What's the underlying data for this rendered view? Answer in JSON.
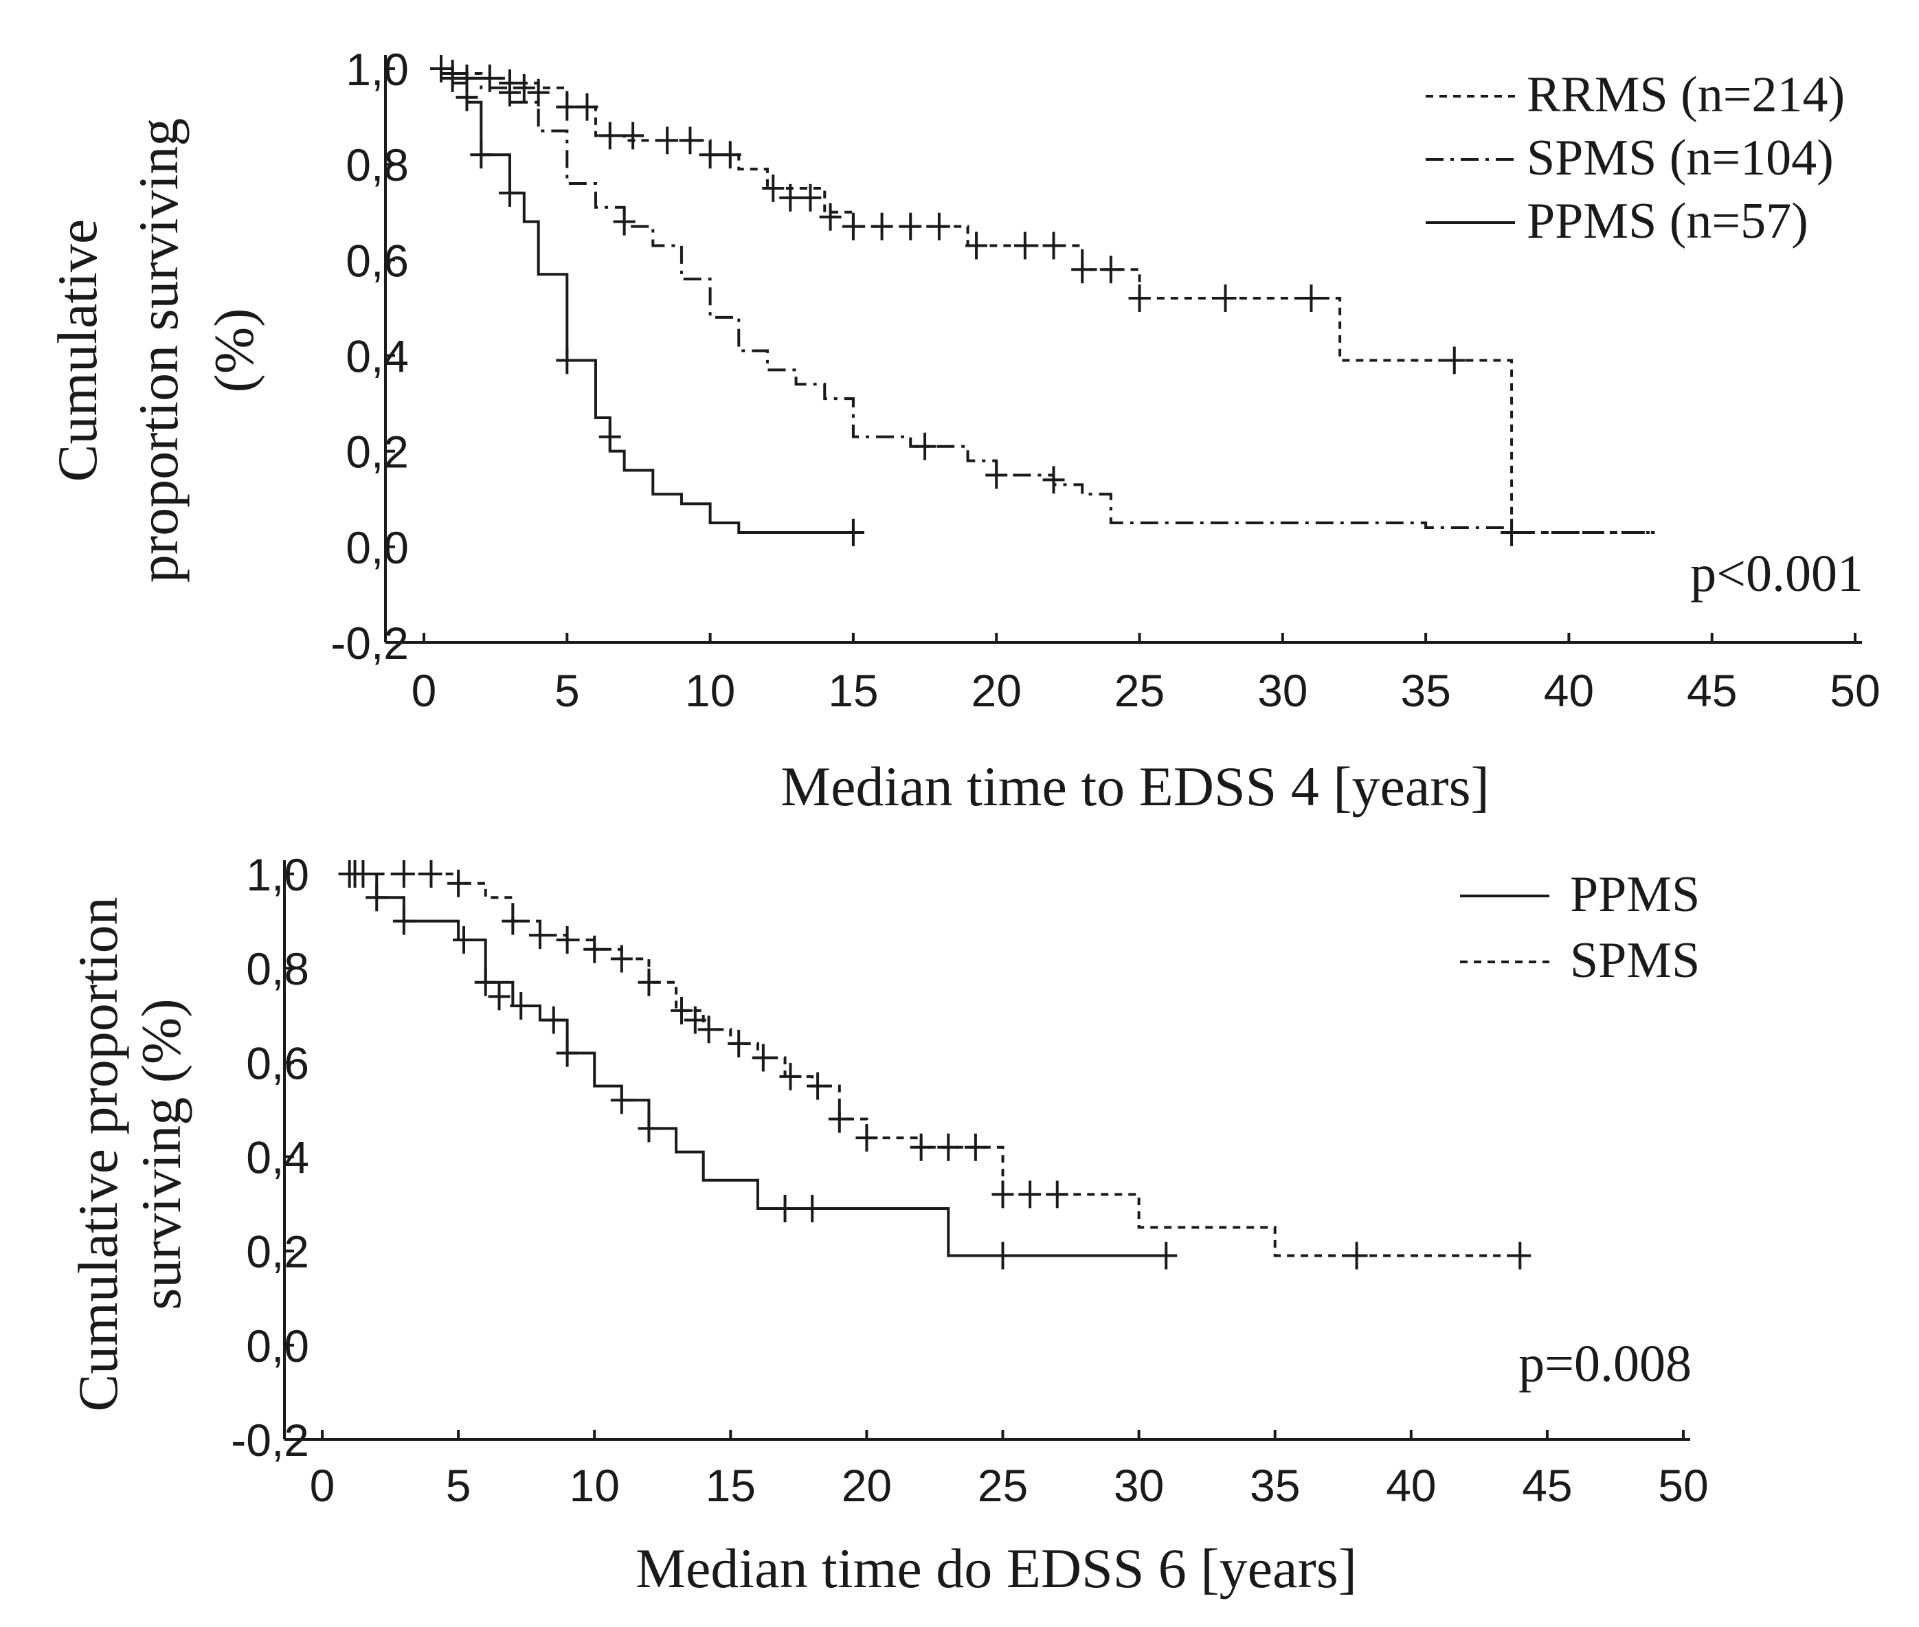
{
  "chart_data": [
    {
      "type": "line",
      "subtype": "kaplan-meier",
      "xlabel": "Median time to EDSS 4 [years]",
      "ylabel_lines": [
        "Cumulative",
        "proportion surviving",
        "(%)"
      ],
      "xlim": [
        0,
        50
      ],
      "ylim": [
        -0.2,
        1.0
      ],
      "xticks": [
        "0",
        "5",
        "10",
        "15",
        "20",
        "25",
        "30",
        "35",
        "40",
        "45",
        "50"
      ],
      "yticks": [
        "1,0",
        "0,8",
        "0,6",
        "0,4",
        "0,2",
        "0,0",
        "-0,2"
      ],
      "annotation": "p<0.001",
      "legend_position": "top-right",
      "series": [
        {
          "name": "RRMS (n=214)",
          "dash": "short-dash",
          "steps": [
            [
              0.5,
              1.0
            ],
            [
              1,
              0.99
            ],
            [
              2,
              0.98
            ],
            [
              3,
              0.97
            ],
            [
              4,
              0.96
            ],
            [
              5,
              0.92
            ],
            [
              6,
              0.86
            ],
            [
              7,
              0.85
            ],
            [
              10,
              0.82
            ],
            [
              11,
              0.79
            ],
            [
              12,
              0.75
            ],
            [
              14,
              0.7
            ],
            [
              15,
              0.67
            ],
            [
              19,
              0.63
            ],
            [
              23,
              0.58
            ],
            [
              25,
              0.52
            ],
            [
              32,
              0.39
            ],
            [
              38,
              0.03
            ],
            [
              43,
              0.03
            ]
          ],
          "censored": [
            [
              0.6,
              1.0
            ],
            [
              1,
              0.99
            ],
            [
              1.5,
              0.98
            ],
            [
              2.3,
              0.98
            ],
            [
              3,
              0.97
            ],
            [
              3.5,
              0.96
            ],
            [
              4,
              0.95
            ],
            [
              5,
              0.92
            ],
            [
              5.7,
              0.92
            ],
            [
              6.5,
              0.86
            ],
            [
              7.3,
              0.86
            ],
            [
              8.5,
              0.85
            ],
            [
              9.3,
              0.85
            ],
            [
              10,
              0.82
            ],
            [
              10.7,
              0.82
            ],
            [
              12.2,
              0.75
            ],
            [
              12.8,
              0.73
            ],
            [
              13.5,
              0.73
            ],
            [
              14.2,
              0.69
            ],
            [
              15,
              0.67
            ],
            [
              16,
              0.67
            ],
            [
              17,
              0.67
            ],
            [
              18,
              0.67
            ],
            [
              19.3,
              0.63
            ],
            [
              21,
              0.63
            ],
            [
              22,
              0.63
            ],
            [
              23,
              0.58
            ],
            [
              24,
              0.58
            ],
            [
              25,
              0.52
            ],
            [
              28,
              0.52
            ],
            [
              31,
              0.52
            ],
            [
              36,
              0.39
            ]
          ]
        },
        {
          "name": "SPMS (n=104)",
          "dash": "dash-dot",
          "steps": [
            [
              0.5,
              1.0
            ],
            [
              1,
              0.98
            ],
            [
              2,
              0.96
            ],
            [
              3,
              0.93
            ],
            [
              4,
              0.87
            ],
            [
              5,
              0.76
            ],
            [
              6,
              0.71
            ],
            [
              7,
              0.67
            ],
            [
              8,
              0.63
            ],
            [
              9,
              0.56
            ],
            [
              10,
              0.48
            ],
            [
              11,
              0.41
            ],
            [
              12,
              0.37
            ],
            [
              13,
              0.34
            ],
            [
              14,
              0.31
            ],
            [
              15,
              0.23
            ],
            [
              17,
              0.21
            ],
            [
              19,
              0.18
            ],
            [
              20,
              0.15
            ],
            [
              22,
              0.13
            ],
            [
              23,
              0.11
            ],
            [
              24,
              0.05
            ],
            [
              35,
              0.04
            ],
            [
              38,
              0.03
            ],
            [
              43,
              0.03
            ]
          ],
          "censored": [
            [
              3,
              0.95
            ],
            [
              7,
              0.68
            ],
            [
              17.5,
              0.21
            ],
            [
              20,
              0.15
            ],
            [
              22,
              0.14
            ],
            [
              38,
              0.03
            ]
          ]
        },
        {
          "name": "PPMS (n=57)",
          "dash": "solid",
          "steps": [
            [
              0.5,
              1.0
            ],
            [
              1,
              0.97
            ],
            [
              1.5,
              0.93
            ],
            [
              2,
              0.82
            ],
            [
              3,
              0.74
            ],
            [
              3.5,
              0.68
            ],
            [
              4,
              0.57
            ],
            [
              5,
              0.39
            ],
            [
              6,
              0.27
            ],
            [
              6.5,
              0.2
            ],
            [
              7,
              0.16
            ],
            [
              8,
              0.11
            ],
            [
              9,
              0.09
            ],
            [
              10,
              0.05
            ],
            [
              11,
              0.03
            ],
            [
              15,
              0.03
            ]
          ],
          "censored": [
            [
              1,
              0.98
            ],
            [
              1.5,
              0.94
            ],
            [
              2,
              0.82
            ],
            [
              3,
              0.74
            ],
            [
              5,
              0.39
            ],
            [
              6.5,
              0.23
            ],
            [
              15,
              0.03
            ]
          ]
        }
      ]
    },
    {
      "type": "line",
      "subtype": "kaplan-meier",
      "xlabel": "Median time do EDSS 6 [years]",
      "ylabel_lines": [
        "Cumulative proportion",
        "surviving (%)"
      ],
      "xlim": [
        0,
        50
      ],
      "ylim": [
        -0.2,
        1.0
      ],
      "xticks": [
        "0",
        "5",
        "10",
        "15",
        "20",
        "25",
        "30",
        "35",
        "40",
        "45",
        "50"
      ],
      "yticks": [
        "1,0",
        "0,8",
        "0,6",
        "0,4",
        "0,2",
        "0,0",
        "-0,2"
      ],
      "annotation": "p=0.008",
      "legend_position": "top-right",
      "series": [
        {
          "name": "PPMS",
          "dash": "solid",
          "steps": [
            [
              1,
              1.0
            ],
            [
              2,
              0.95
            ],
            [
              3,
              0.9
            ],
            [
              5,
              0.86
            ],
            [
              6,
              0.77
            ],
            [
              7,
              0.72
            ],
            [
              8,
              0.69
            ],
            [
              9,
              0.62
            ],
            [
              10,
              0.55
            ],
            [
              11,
              0.52
            ],
            [
              12,
              0.46
            ],
            [
              13,
              0.41
            ],
            [
              14,
              0.35
            ],
            [
              16,
              0.29
            ],
            [
              23,
              0.19
            ],
            [
              31,
              0.19
            ]
          ],
          "censored": [
            [
              1,
              1.0
            ],
            [
              1.5,
              1.0
            ],
            [
              2,
              0.95
            ],
            [
              3,
              0.9
            ],
            [
              5.2,
              0.86
            ],
            [
              6,
              0.77
            ],
            [
              6.5,
              0.74
            ],
            [
              7.3,
              0.72
            ],
            [
              8.5,
              0.69
            ],
            [
              9,
              0.62
            ],
            [
              11,
              0.52
            ],
            [
              12,
              0.46
            ],
            [
              17,
              0.29
            ],
            [
              18,
              0.29
            ],
            [
              25,
              0.19
            ],
            [
              31,
              0.19
            ]
          ]
        },
        {
          "name": "SPMS",
          "dash": "short-dash",
          "steps": [
            [
              1,
              1.0
            ],
            [
              5,
              0.98
            ],
            [
              6,
              0.95
            ],
            [
              7,
              0.9
            ],
            [
              8,
              0.87
            ],
            [
              9,
              0.86
            ],
            [
              10,
              0.84
            ],
            [
              11,
              0.82
            ],
            [
              12,
              0.77
            ],
            [
              13,
              0.71
            ],
            [
              14,
              0.67
            ],
            [
              15,
              0.64
            ],
            [
              16,
              0.61
            ],
            [
              17,
              0.57
            ],
            [
              18,
              0.55
            ],
            [
              19,
              0.48
            ],
            [
              20,
              0.44
            ],
            [
              22,
              0.42
            ],
            [
              25,
              0.32
            ],
            [
              30,
              0.25
            ],
            [
              35,
              0.19
            ],
            [
              44,
              0.19
            ]
          ],
          "censored": [
            [
              1.2,
              1.0
            ],
            [
              3,
              1.0
            ],
            [
              4,
              1.0
            ],
            [
              5,
              0.98
            ],
            [
              7,
              0.9
            ],
            [
              8,
              0.87
            ],
            [
              9,
              0.86
            ],
            [
              10,
              0.84
            ],
            [
              11,
              0.82
            ],
            [
              12,
              0.77
            ],
            [
              13.2,
              0.71
            ],
            [
              13.7,
              0.69
            ],
            [
              14.2,
              0.67
            ],
            [
              15.3,
              0.64
            ],
            [
              16.2,
              0.61
            ],
            [
              17.2,
              0.57
            ],
            [
              18.2,
              0.55
            ],
            [
              19,
              0.48
            ],
            [
              20,
              0.44
            ],
            [
              22,
              0.42
            ],
            [
              23,
              0.42
            ],
            [
              24,
              0.42
            ],
            [
              25,
              0.32
            ],
            [
              26,
              0.32
            ],
            [
              27,
              0.32
            ],
            [
              38,
              0.19
            ],
            [
              44,
              0.19
            ]
          ]
        }
      ]
    }
  ]
}
